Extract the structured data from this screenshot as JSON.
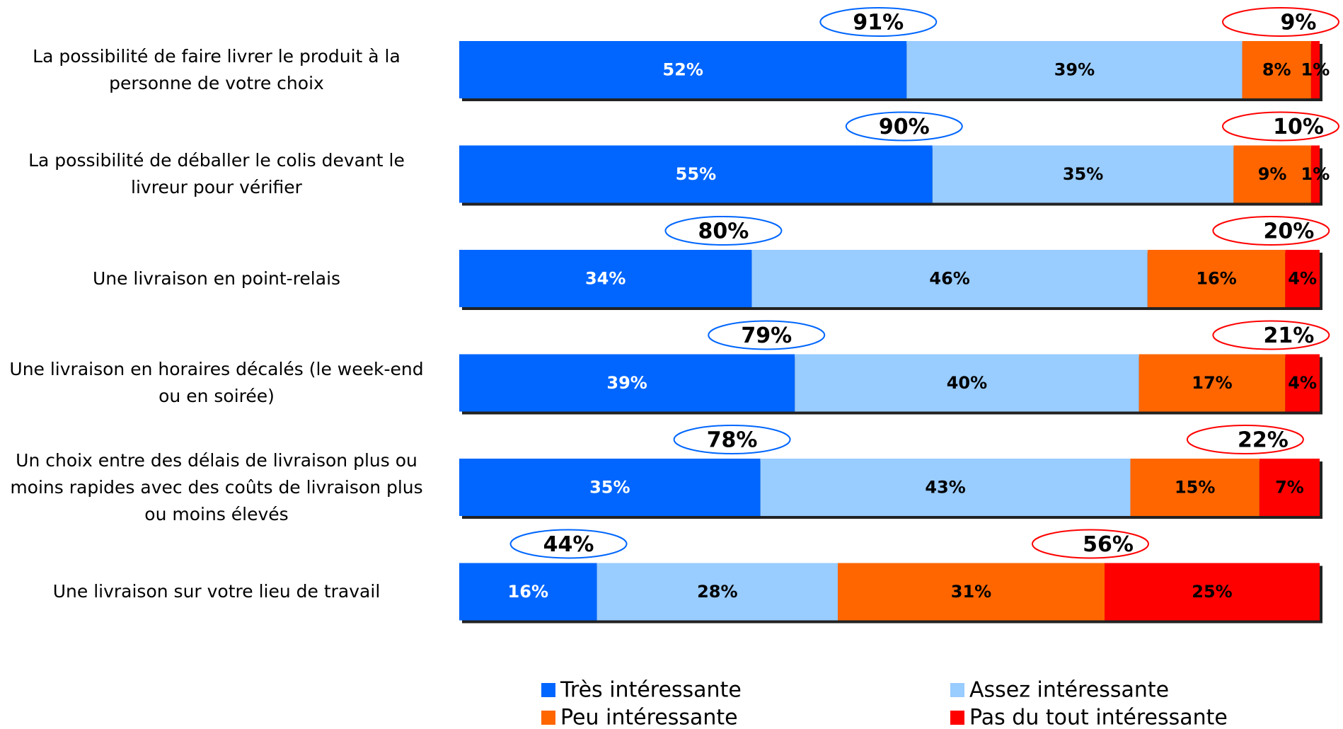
{
  "chart_data": {
    "type": "stacked-bar-horizontal",
    "categories": [
      "La possibilité de faire livrer le produit à la personne de votre choix",
      "La possibilité de déballer le colis devant le livreur pour vérifier",
      "Une livraison en point-relais",
      "Une livraison en horaires décalés (le week-end ou en soirée)",
      "Un choix entre des délais de livraison plus ou moins rapides avec des coûts de livraison plus ou moins élevés",
      "Une livraison sur votre lieu de travail"
    ],
    "series": [
      {
        "name": "Très intéressante",
        "color": "#0066ff",
        "values": [
          52,
          55,
          34,
          39,
          35,
          16
        ],
        "value_labels": [
          "52%",
          "55%",
          "34%",
          "39%",
          "35%",
          "16%"
        ]
      },
      {
        "name": "Assez intéressante",
        "color": "#99ccff",
        "values": [
          39,
          35,
          46,
          40,
          43,
          28
        ],
        "value_labels": [
          "39%",
          "35%",
          "46%",
          "40%",
          "43%",
          "28%"
        ]
      },
      {
        "name": "Peu intéressante",
        "color": "#ff6600",
        "values": [
          8,
          9,
          16,
          17,
          15,
          31
        ],
        "value_labels": [
          "8%",
          "9%",
          "16%",
          "17%",
          "15%",
          "31%"
        ]
      },
      {
        "name": "Pas du tout intéressante",
        "color": "#ff0000",
        "values": [
          1,
          1,
          4,
          4,
          7,
          25
        ],
        "value_labels": [
          "1%",
          "1%",
          "4%",
          "4%",
          "7%",
          "25%"
        ]
      }
    ],
    "positive_totals": {
      "color": "#0066ff",
      "values": [
        91,
        90,
        80,
        79,
        78,
        44
      ],
      "value_labels": [
        "91%",
        "90%",
        "80%",
        "79%",
        "78%",
        "44%"
      ]
    },
    "negative_totals": {
      "color": "#ff0000",
      "values": [
        9,
        10,
        20,
        21,
        22,
        56
      ],
      "value_labels": [
        "9%",
        "10%",
        "20%",
        "21%",
        "22%",
        "56%"
      ]
    },
    "xlim": [
      0,
      100
    ]
  }
}
